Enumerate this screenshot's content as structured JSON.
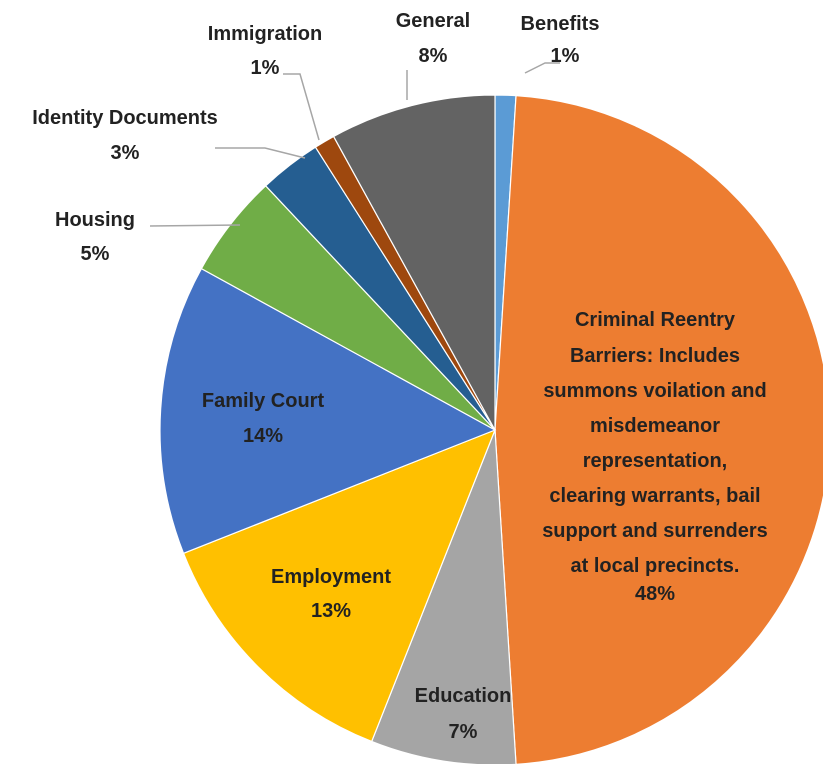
{
  "chart_data": {
    "type": "pie",
    "title": "",
    "start_angle_deg": 0,
    "direction": "clockwise",
    "slices": [
      {
        "label": "Benefits",
        "value": 1,
        "value_label": "1%",
        "color": "#5B9BD5"
      },
      {
        "label": "Criminal Reentry Barriers: Includes summons voilation and misdemeanor representation, clearing warrants, bail support and surrenders at local precincts.",
        "value": 48,
        "value_label": "48%",
        "color": "#ED7D31"
      },
      {
        "label": "Education",
        "value": 7,
        "value_label": "7%",
        "color": "#A5A5A5"
      },
      {
        "label": "Employment",
        "value": 13,
        "value_label": "13%",
        "color": "#FFC000"
      },
      {
        "label": "Family Court",
        "value": 14,
        "value_label": "14%",
        "color": "#4472C4"
      },
      {
        "label": "Housing",
        "value": 5,
        "value_label": "5%",
        "color": "#70AD47"
      },
      {
        "label": "Identity Documents",
        "value": 3,
        "value_label": "3%",
        "color": "#255E91"
      },
      {
        "label": "Immigration",
        "value": 1,
        "value_label": "1%",
        "color": "#9E480E"
      },
      {
        "label": "General",
        "value": 8,
        "value_label": "8%",
        "color": "#636363"
      }
    ],
    "legend": "none",
    "data_labels": "category-and-percent"
  }
}
